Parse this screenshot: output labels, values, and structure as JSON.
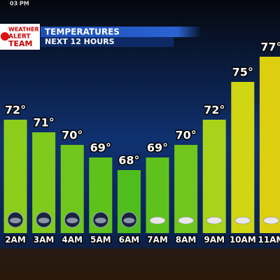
{
  "timestamp": "03 PM",
  "brand": [
    "WEATHER",
    "ALERT",
    "TEAM"
  ],
  "chart_data": {
    "type": "bar",
    "title": "TEMPERATURES",
    "subtitle": "NEXT 12 HOURS",
    "categories": [
      "2AM",
      "3AM",
      "4AM",
      "5AM",
      "6AM",
      "7AM",
      "8AM",
      "9AM",
      "10AM",
      "11AM"
    ],
    "values": [
      72,
      71,
      70,
      69,
      68,
      69,
      70,
      72,
      75,
      77
    ],
    "value_labels": [
      "72°",
      "71°",
      "70°",
      "69°",
      "68°",
      "69°",
      "70°",
      "72°",
      "75°",
      "77°"
    ],
    "colors": [
      "#8ccd1c",
      "#7fca1c",
      "#70c61c",
      "#5fc21c",
      "#4fbe1c",
      "#5fc21c",
      "#70c61c",
      "#a8d31a",
      "#d0d514",
      "#dccf10"
    ],
    "ylim": [
      63,
      80
    ]
  }
}
